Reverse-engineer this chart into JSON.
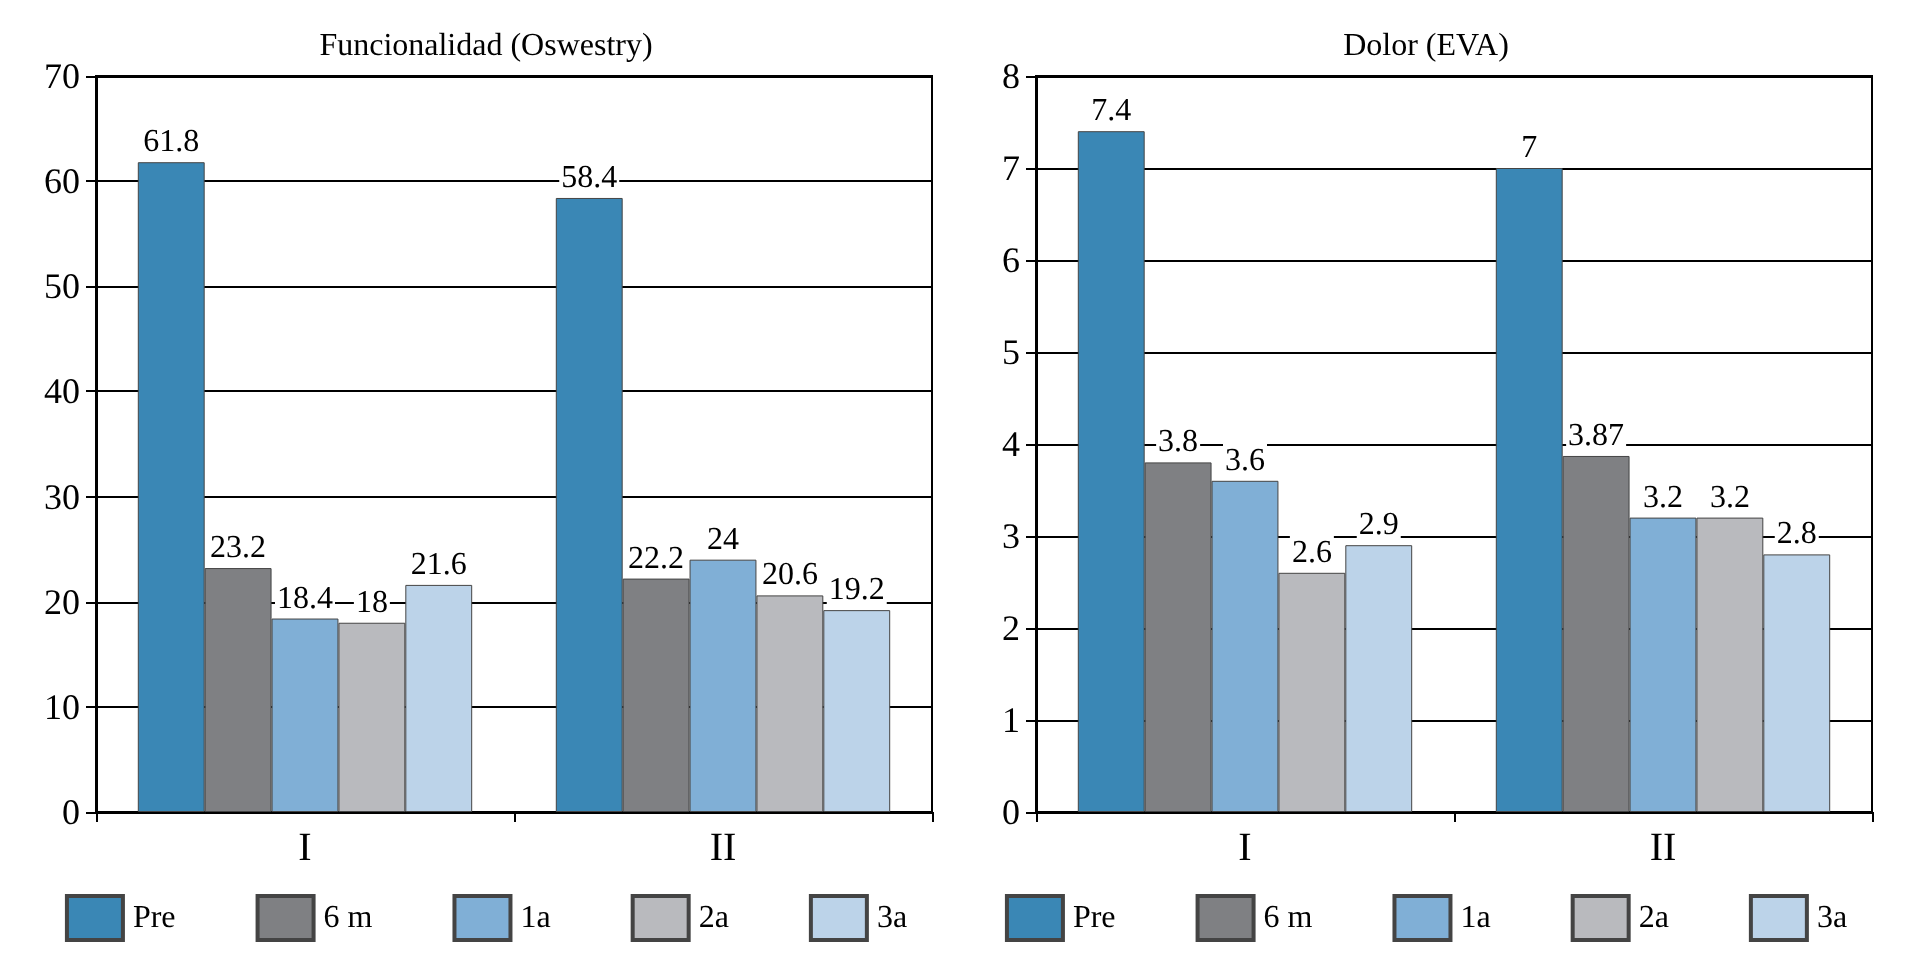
{
  "chart_data": [
    {
      "type": "bar",
      "title": "Funcionalidad (Oswestry)",
      "categories": [
        "I",
        "II"
      ],
      "series": [
        {
          "name": "Pre",
          "color": "#3a87b5",
          "values": [
            61.8,
            58.4
          ]
        },
        {
          "name": "6 m",
          "color": "#7f8083",
          "values": [
            23.2,
            22.2
          ]
        },
        {
          "name": "1a",
          "color": "#80afd6",
          "values": [
            18.4,
            24
          ]
        },
        {
          "name": "2a",
          "color": "#b9babe",
          "values": [
            18,
            20.6
          ]
        },
        {
          "name": "3a",
          "color": "#bcd3e9",
          "values": [
            21.6,
            19.2
          ]
        }
      ],
      "ylim": [
        0,
        70
      ],
      "yticks": [
        0,
        10,
        20,
        30,
        40,
        50,
        60,
        70
      ],
      "grid": "y",
      "legend": "bottom",
      "data_labels": true
    },
    {
      "type": "bar",
      "title": "Dolor (EVA)",
      "categories": [
        "I",
        "II"
      ],
      "series": [
        {
          "name": "Pre",
          "color": "#3a87b5",
          "values": [
            7.4,
            7
          ]
        },
        {
          "name": "6 m",
          "color": "#7f8083",
          "values": [
            3.8,
            3.87
          ]
        },
        {
          "name": "1a",
          "color": "#80afd6",
          "values": [
            3.6,
            3.2
          ]
        },
        {
          "name": "2a",
          "color": "#b9babe",
          "values": [
            2.6,
            3.2
          ]
        },
        {
          "name": "3a",
          "color": "#bcd3e9",
          "values": [
            2.9,
            2.8
          ]
        }
      ],
      "ylim": [
        0,
        8
      ],
      "yticks": [
        0,
        1,
        2,
        3,
        4,
        5,
        6,
        7,
        8
      ],
      "grid": "y",
      "legend": "bottom",
      "data_labels": true
    }
  ]
}
